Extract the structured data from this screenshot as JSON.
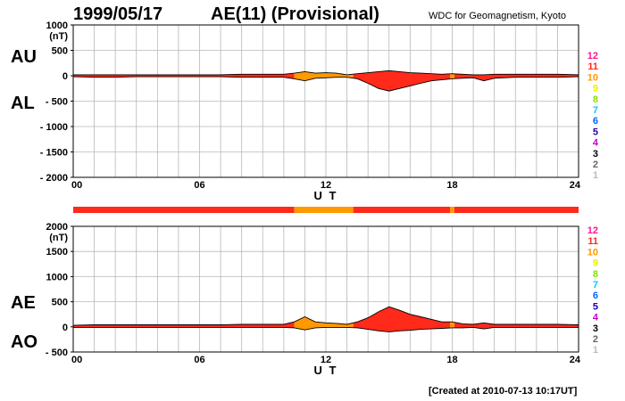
{
  "header": {
    "date": "1999/05/17",
    "title": "AE(11) (Provisional)",
    "source": "WDC for Geomagnetism, Kyoto"
  },
  "footer": {
    "created": "[Created at 2010-07-13 10:17UT]"
  },
  "legend_levels": [
    {
      "label": "12",
      "color": "#ff1493"
    },
    {
      "label": "11",
      "color": "#ff2a1a"
    },
    {
      "label": "10",
      "color": "#ff9900"
    },
    {
      "label": "9",
      "color": "#eeee00"
    },
    {
      "label": "8",
      "color": "#88dd00"
    },
    {
      "label": "7",
      "color": "#00ccff"
    },
    {
      "label": "6",
      "color": "#0066ff"
    },
    {
      "label": "5",
      "color": "#2200aa"
    },
    {
      "label": "4",
      "color": "#cc00cc"
    },
    {
      "label": "3",
      "color": "#000000"
    },
    {
      "label": "2",
      "color": "#666666"
    },
    {
      "label": "1",
      "color": "#bbbbbb"
    }
  ],
  "chart_data": [
    {
      "type": "area",
      "panel": "top",
      "series_labels": [
        "AU",
        "AL"
      ],
      "ylabel_unit": "(nT)",
      "xlabel": "U T",
      "xlim": [
        0,
        24
      ],
      "ylim": [
        -2000,
        1000
      ],
      "xticks": [
        "00",
        "06",
        "12",
        "18",
        "24"
      ],
      "xtick_values": [
        0,
        6,
        12,
        18,
        24
      ],
      "yticks": [
        "1000",
        "500",
        "0",
        "- 500",
        "- 1000",
        "- 1500",
        "- 2000"
      ],
      "ytick_values": [
        1000,
        500,
        0,
        -500,
        -1000,
        -1500,
        -2000
      ],
      "grid": true,
      "hours": [
        0,
        1,
        2,
        3,
        4,
        5,
        6,
        7,
        8,
        9,
        10,
        10.5,
        11,
        11.5,
        12,
        12.5,
        13,
        13.5,
        14,
        14.5,
        15,
        15.5,
        16,
        16.5,
        17,
        17.5,
        18,
        18.5,
        19,
        19.5,
        20,
        21,
        22,
        23,
        24
      ],
      "upper": [
        20,
        20,
        20,
        20,
        20,
        20,
        20,
        20,
        30,
        30,
        30,
        50,
        80,
        50,
        60,
        50,
        20,
        40,
        60,
        80,
        100,
        80,
        60,
        50,
        40,
        30,
        40,
        30,
        20,
        20,
        30,
        30,
        30,
        30,
        20
      ],
      "lower": [
        -20,
        -30,
        -30,
        -20,
        -20,
        -20,
        -20,
        -20,
        -30,
        -30,
        -30,
        -60,
        -100,
        -50,
        -40,
        -30,
        -30,
        -60,
        -150,
        -250,
        -300,
        -250,
        -200,
        -150,
        -100,
        -80,
        -60,
        -50,
        -40,
        -100,
        -50,
        -30,
        -30,
        -30,
        -20
      ]
    },
    {
      "type": "area",
      "panel": "bottom",
      "series_labels": [
        "AE",
        "AO"
      ],
      "ylabel_unit": "(nT)",
      "xlabel": "U T",
      "xlim": [
        0,
        24
      ],
      "ylim": [
        -500,
        2000
      ],
      "xticks": [
        "00",
        "06",
        "12",
        "18",
        "24"
      ],
      "xtick_values": [
        0,
        6,
        12,
        18,
        24
      ],
      "yticks": [
        "2000",
        "1500",
        "1000",
        "500",
        "0",
        "- 500"
      ],
      "ytick_values": [
        2000,
        1500,
        1000,
        500,
        0,
        -500
      ],
      "grid": true,
      "hours": [
        0,
        1,
        2,
        3,
        4,
        5,
        6,
        7,
        8,
        9,
        10,
        10.5,
        11,
        11.5,
        12,
        12.5,
        13,
        13.5,
        14,
        14.5,
        15,
        15.5,
        16,
        16.5,
        17,
        17.5,
        18,
        18.5,
        19,
        19.5,
        20,
        21,
        22,
        23,
        24
      ],
      "upper": [
        30,
        40,
        40,
        40,
        40,
        40,
        40,
        40,
        50,
        50,
        50,
        100,
        200,
        100,
        80,
        70,
        50,
        100,
        180,
        300,
        400,
        330,
        250,
        200,
        150,
        100,
        100,
        60,
        50,
        80,
        50,
        50,
        50,
        50,
        40
      ],
      "lower": [
        -10,
        -10,
        -10,
        -10,
        -10,
        -10,
        -10,
        -10,
        -10,
        -10,
        -10,
        -20,
        -60,
        -20,
        -10,
        -10,
        -10,
        -20,
        -50,
        -80,
        -100,
        -80,
        -70,
        -50,
        -40,
        -30,
        -20,
        -20,
        -10,
        -40,
        -10,
        -10,
        -10,
        -10,
        -10
      ]
    }
  ],
  "activity_bar": {
    "segments": [
      {
        "from": 0,
        "to": 10.5,
        "level": "11"
      },
      {
        "from": 10.5,
        "to": 13.3,
        "level": "10"
      },
      {
        "from": 13.3,
        "to": 17.9,
        "level": "11"
      },
      {
        "from": 17.9,
        "to": 18.1,
        "level": "10"
      },
      {
        "from": 18.1,
        "to": 24,
        "level": "11"
      }
    ]
  },
  "fill_segments": [
    {
      "from": 0,
      "to": 10.5,
      "level": "11"
    },
    {
      "from": 10.5,
      "to": 13.3,
      "level": "10"
    },
    {
      "from": 13.3,
      "to": 17.9,
      "level": "11"
    },
    {
      "from": 17.9,
      "to": 18.1,
      "level": "10"
    },
    {
      "from": 18.1,
      "to": 24,
      "level": "11"
    }
  ]
}
